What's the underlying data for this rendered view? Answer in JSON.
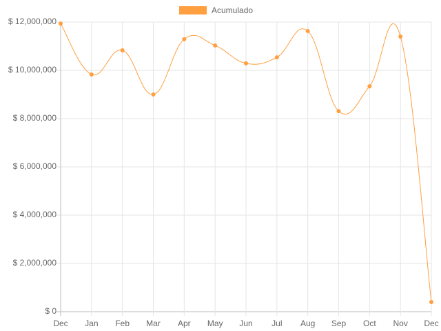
{
  "chart_data": {
    "type": "line",
    "categories": [
      "Dec",
      "Jan",
      "Feb",
      "Mar",
      "Apr",
      "May",
      "Jun",
      "Jul",
      "Aug",
      "Sep",
      "Oct",
      "Nov",
      "Dec"
    ],
    "series": [
      {
        "name": "Acumulado",
        "color": "#ff9f40",
        "values": [
          11940000,
          9830000,
          10830000,
          9000000,
          11290000,
          11030000,
          10290000,
          10540000,
          11630000,
          8310000,
          9340000,
          11400000,
          400000
        ]
      }
    ],
    "ylim": [
      0,
      12000000
    ],
    "yticks": [
      {
        "value": 0,
        "label": "$ 0"
      },
      {
        "value": 2000000,
        "label": "$ 2,000,000"
      },
      {
        "value": 4000000,
        "label": "$ 4,000,000"
      },
      {
        "value": 6000000,
        "label": "$ 6,000,000"
      },
      {
        "value": 8000000,
        "label": "$ 8,000,000"
      },
      {
        "value": 10000000,
        "label": "$ 10,000,000"
      },
      {
        "value": 12000000,
        "label": "$ 12,000,000"
      }
    ],
    "grid": true,
    "legend": "top"
  }
}
